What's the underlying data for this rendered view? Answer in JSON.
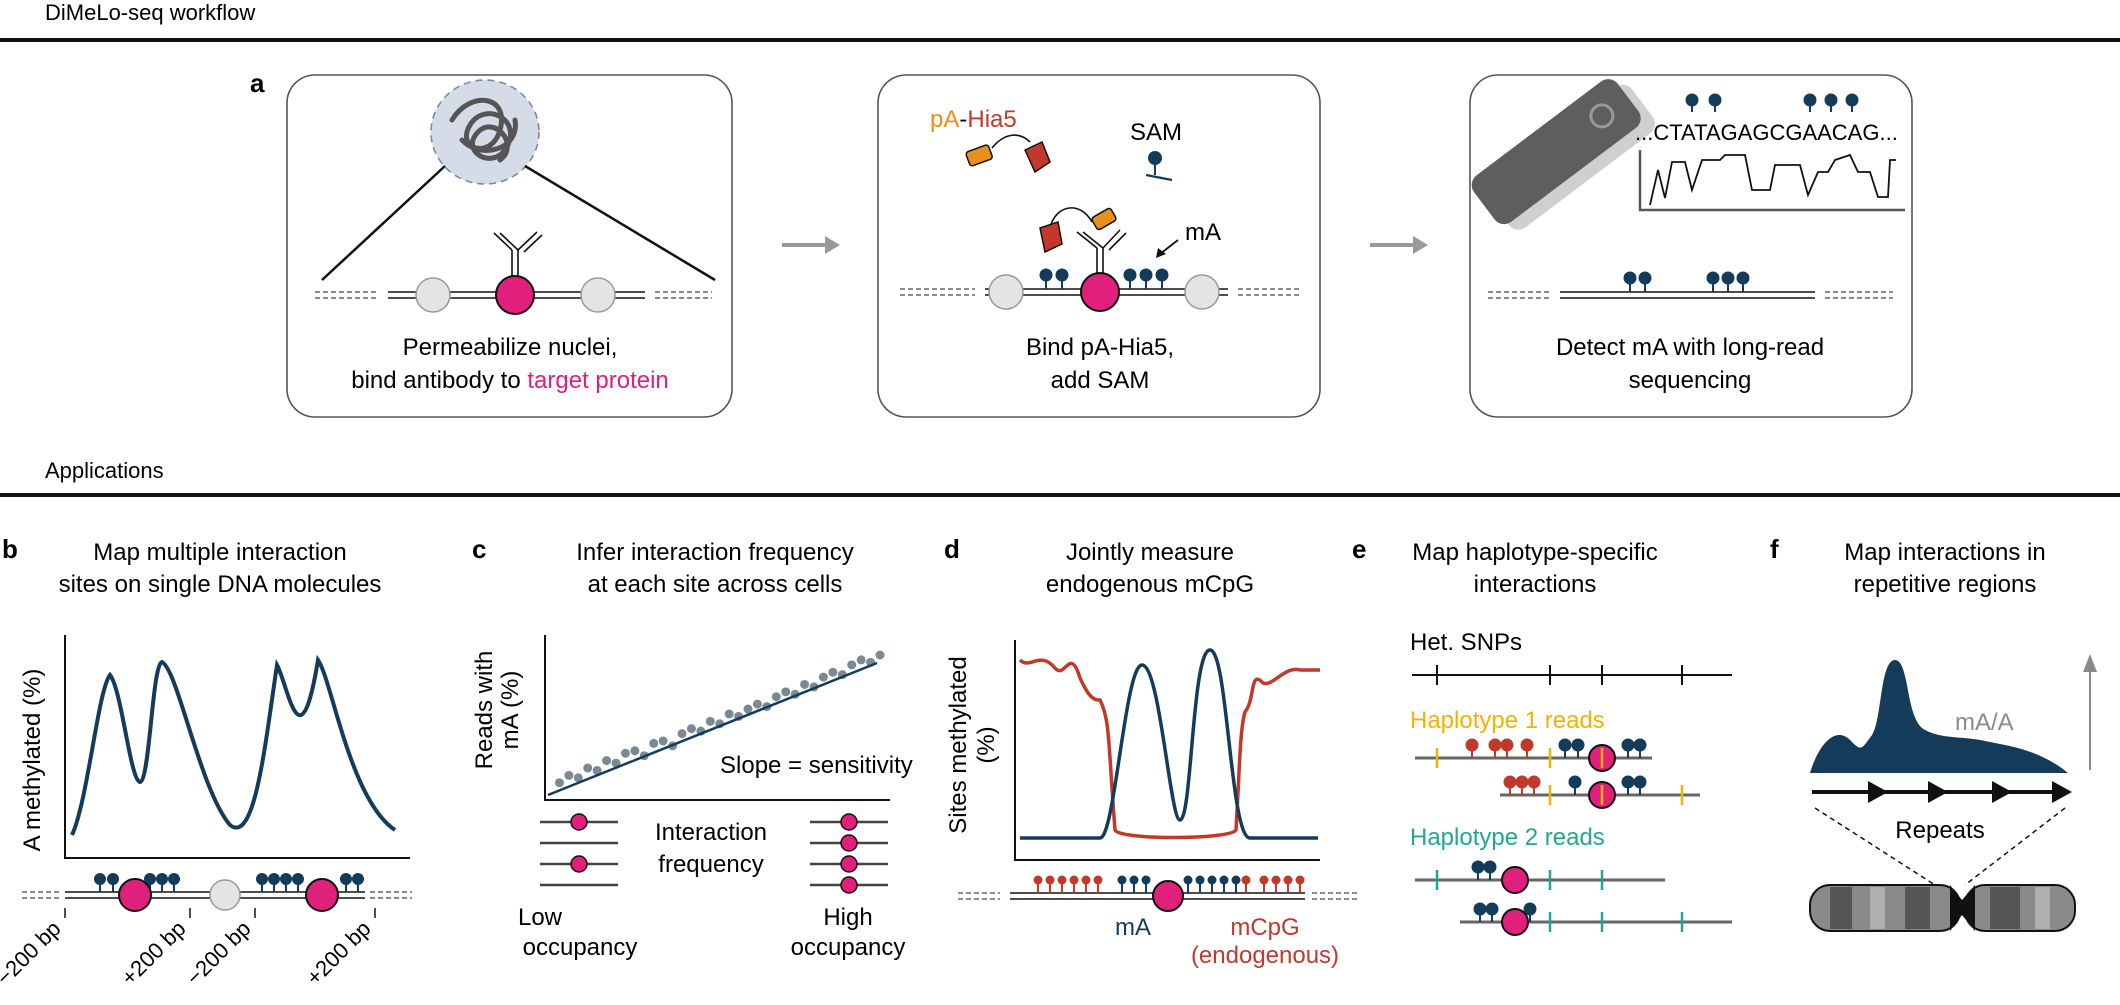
{
  "sections": {
    "workflow_title": "DiMeLo-seq workflow",
    "applications_title": "Applications"
  },
  "panel_letters": {
    "a": "a",
    "b": "b",
    "c": "c",
    "d": "d",
    "e": "e",
    "f": "f"
  },
  "step1": {
    "caption_line1": "Permeabilize nuclei,",
    "caption_line2_prefix": "bind antibody to ",
    "caption_line2_highlight": "target protein"
  },
  "step2": {
    "pa_label": "pA",
    "dash": "-",
    "hia5_label": "Hia5",
    "sam_label": "SAM",
    "ma_label": "mA",
    "caption_line1": "Bind pA-Hia5,",
    "caption_line2": "add SAM"
  },
  "step3": {
    "sequence": "...CTATAGAGCGAACAG...",
    "caption_line1": "Detect mA with long-read",
    "caption_line2": "sequencing"
  },
  "panel_b": {
    "title_line1": "Map multiple interaction",
    "title_line2": "sites on single DNA molecules",
    "ylabel": "A methylated (%)",
    "ticks": [
      "−200 bp",
      "+200 bp",
      "−200 bp",
      "+200 bp"
    ]
  },
  "panel_c": {
    "title_line1": "Infer interaction frequency",
    "title_line2": "at each site across cells",
    "ylabel_line1": "Reads with",
    "ylabel_line2": "mA (%)",
    "slope_label": "Slope = sensitivity",
    "interaction_line1": "Interaction",
    "interaction_line2": "frequency",
    "low_line1": "Low",
    "low_line2": "occupancy",
    "high_line1": "High",
    "high_line2": "occupancy"
  },
  "panel_d": {
    "title_line1": "Jointly measure",
    "title_line2": "endogenous mCpG",
    "ylabel_line1": "Sites methylated",
    "ylabel_line2": "(%)",
    "ma_label": "mA",
    "mcpg_line1": "mCpG",
    "mcpg_line2": "(endogenous)"
  },
  "panel_e": {
    "title_line1": "Map haplotype-specific",
    "title_line2": "interactions",
    "snps_label": "Het. SNPs",
    "hap1_label": "Haplotype 1 reads",
    "hap2_label": "Haplotype 2 reads"
  },
  "panel_f": {
    "title_line1": "Map interactions in",
    "title_line2": "repetitive regions",
    "ma_a_label": "mA/A",
    "repeats_label": "Repeats"
  },
  "colors": {
    "navy": "#143c5a",
    "magenta": "#e0207a",
    "red": "#c0392b",
    "orange": "#e8901c",
    "yellow": "#f0b400",
    "teal": "#20a890",
    "gray": "#8a8a8a"
  },
  "chart_data": [
    {
      "type": "scatter",
      "panel": "c",
      "ylabel": "Reads with mA (%)",
      "description_of_axes": "interaction frequency vs reads with mA",
      "x": [
        1,
        2,
        3,
        4,
        5,
        6,
        7,
        8,
        9,
        10,
        11,
        12,
        13,
        14,
        15,
        16,
        17,
        18,
        19,
        20,
        21,
        22,
        23,
        24,
        25,
        26,
        27,
        28,
        29,
        30,
        31,
        32,
        33,
        34,
        35
      ],
      "y": [
        5,
        8,
        7,
        11,
        10,
        14,
        13,
        17,
        18,
        16,
        21,
        22,
        20,
        25,
        27,
        26,
        30,
        29,
        33,
        32,
        35,
        37,
        36,
        40,
        42,
        41,
        45,
        44,
        48,
        50,
        49,
        53,
        55,
        54,
        57
      ],
      "fit_line": {
        "slope_label": "Slope = sensitivity"
      }
    }
  ]
}
